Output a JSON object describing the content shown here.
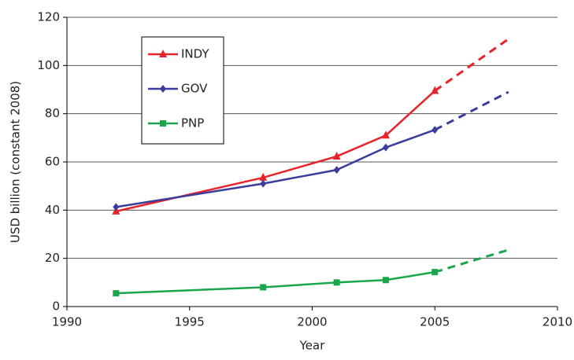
{
  "chart_data": {
    "type": "line",
    "x_label": "Year",
    "y_label": "USD billion (constant 2008)",
    "x": [
      1992,
      1998,
      2001,
      2003,
      2005,
      2008
    ],
    "series": [
      {
        "name": "INDY",
        "color": "#e8232a",
        "marker": "triangle",
        "values": [
          39.5,
          53.5,
          62.3,
          71,
          89.5,
          null
        ],
        "projection_values": [
          null,
          null,
          null,
          null,
          null,
          111
        ]
      },
      {
        "name": "GOV",
        "color": "#3a3d9c",
        "marker": "diamond",
        "values": [
          41.3,
          51,
          56.7,
          66,
          73.3,
          null
        ],
        "projection_values": [
          null,
          null,
          null,
          null,
          null,
          89
        ]
      },
      {
        "name": "PNP",
        "color": "#1aa64a",
        "marker": "square",
        "values": [
          5.5,
          8,
          10,
          11,
          14.3,
          null
        ],
        "projection_values": [
          null,
          null,
          null,
          null,
          null,
          23.5
        ]
      }
    ],
    "xlim": [
      1990,
      2010
    ],
    "xticks": [
      1990,
      1995,
      2000,
      2005,
      2010
    ],
    "ylim": [
      0,
      120
    ],
    "yticks": [
      0,
      20,
      40,
      60,
      80,
      100,
      120
    ],
    "grid": true,
    "legend": "upper-left"
  }
}
